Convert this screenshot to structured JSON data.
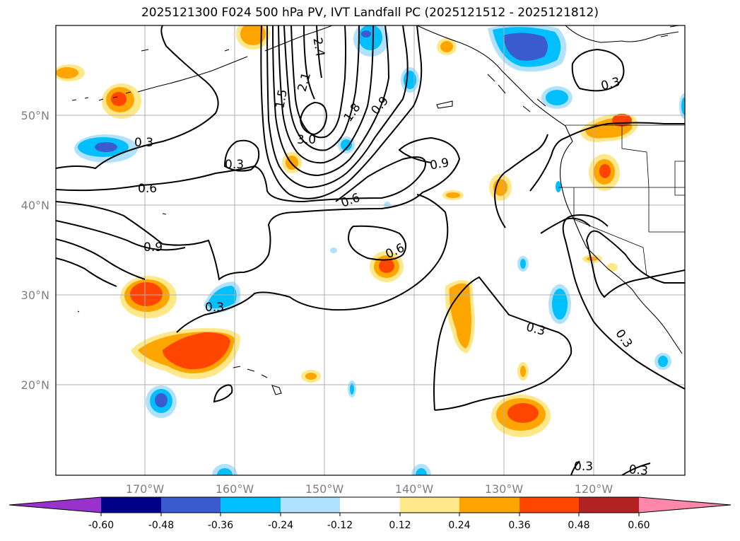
{
  "title": "2025121300 F024 500 hPa PV, IVT Landfall PC (2025121512 - 2025121812)",
  "lat_labels": [
    "50°N",
    "40°N",
    "30°N",
    "20°N"
  ],
  "lon_labels": [
    "170°W",
    "160°W",
    "150°W",
    "140°W",
    "130°W",
    "120°W"
  ],
  "contour_labels": [
    "0.3",
    "0.3",
    "0.6",
    "0.9",
    "0.3",
    "1.5",
    "2.1",
    "2.4",
    "3.0",
    "1.8",
    "0.9",
    "0.9",
    "0.6",
    "0.6",
    "0.3",
    "0.3",
    "0.3",
    "0.3",
    "0.3"
  ],
  "colorbar": {
    "ticks": [
      "-0.60",
      "-0.48",
      "-0.36",
      "-0.24",
      "-0.12",
      "0.12",
      "0.24",
      "0.36",
      "0.48",
      "0.60"
    ],
    "colors": [
      "#9932cc",
      "#00008b",
      "#3a5bd0",
      "#00bfff",
      "#b0e2ff",
      "#ffffff",
      "#ffe88a",
      "#ffa500",
      "#ff4500",
      "#b22222",
      "#ff88aa"
    ]
  },
  "colors": {
    "frame": "#000000",
    "grid": "#b0b0b0",
    "axis_label": "#808080",
    "positive_low": "#ffe88a",
    "positive_mid": "#ffa500",
    "positive_high": "#ff4500",
    "negative_low": "#b0e2ff",
    "negative_mid": "#00bfff",
    "negative_high": "#3a5bd0"
  }
}
